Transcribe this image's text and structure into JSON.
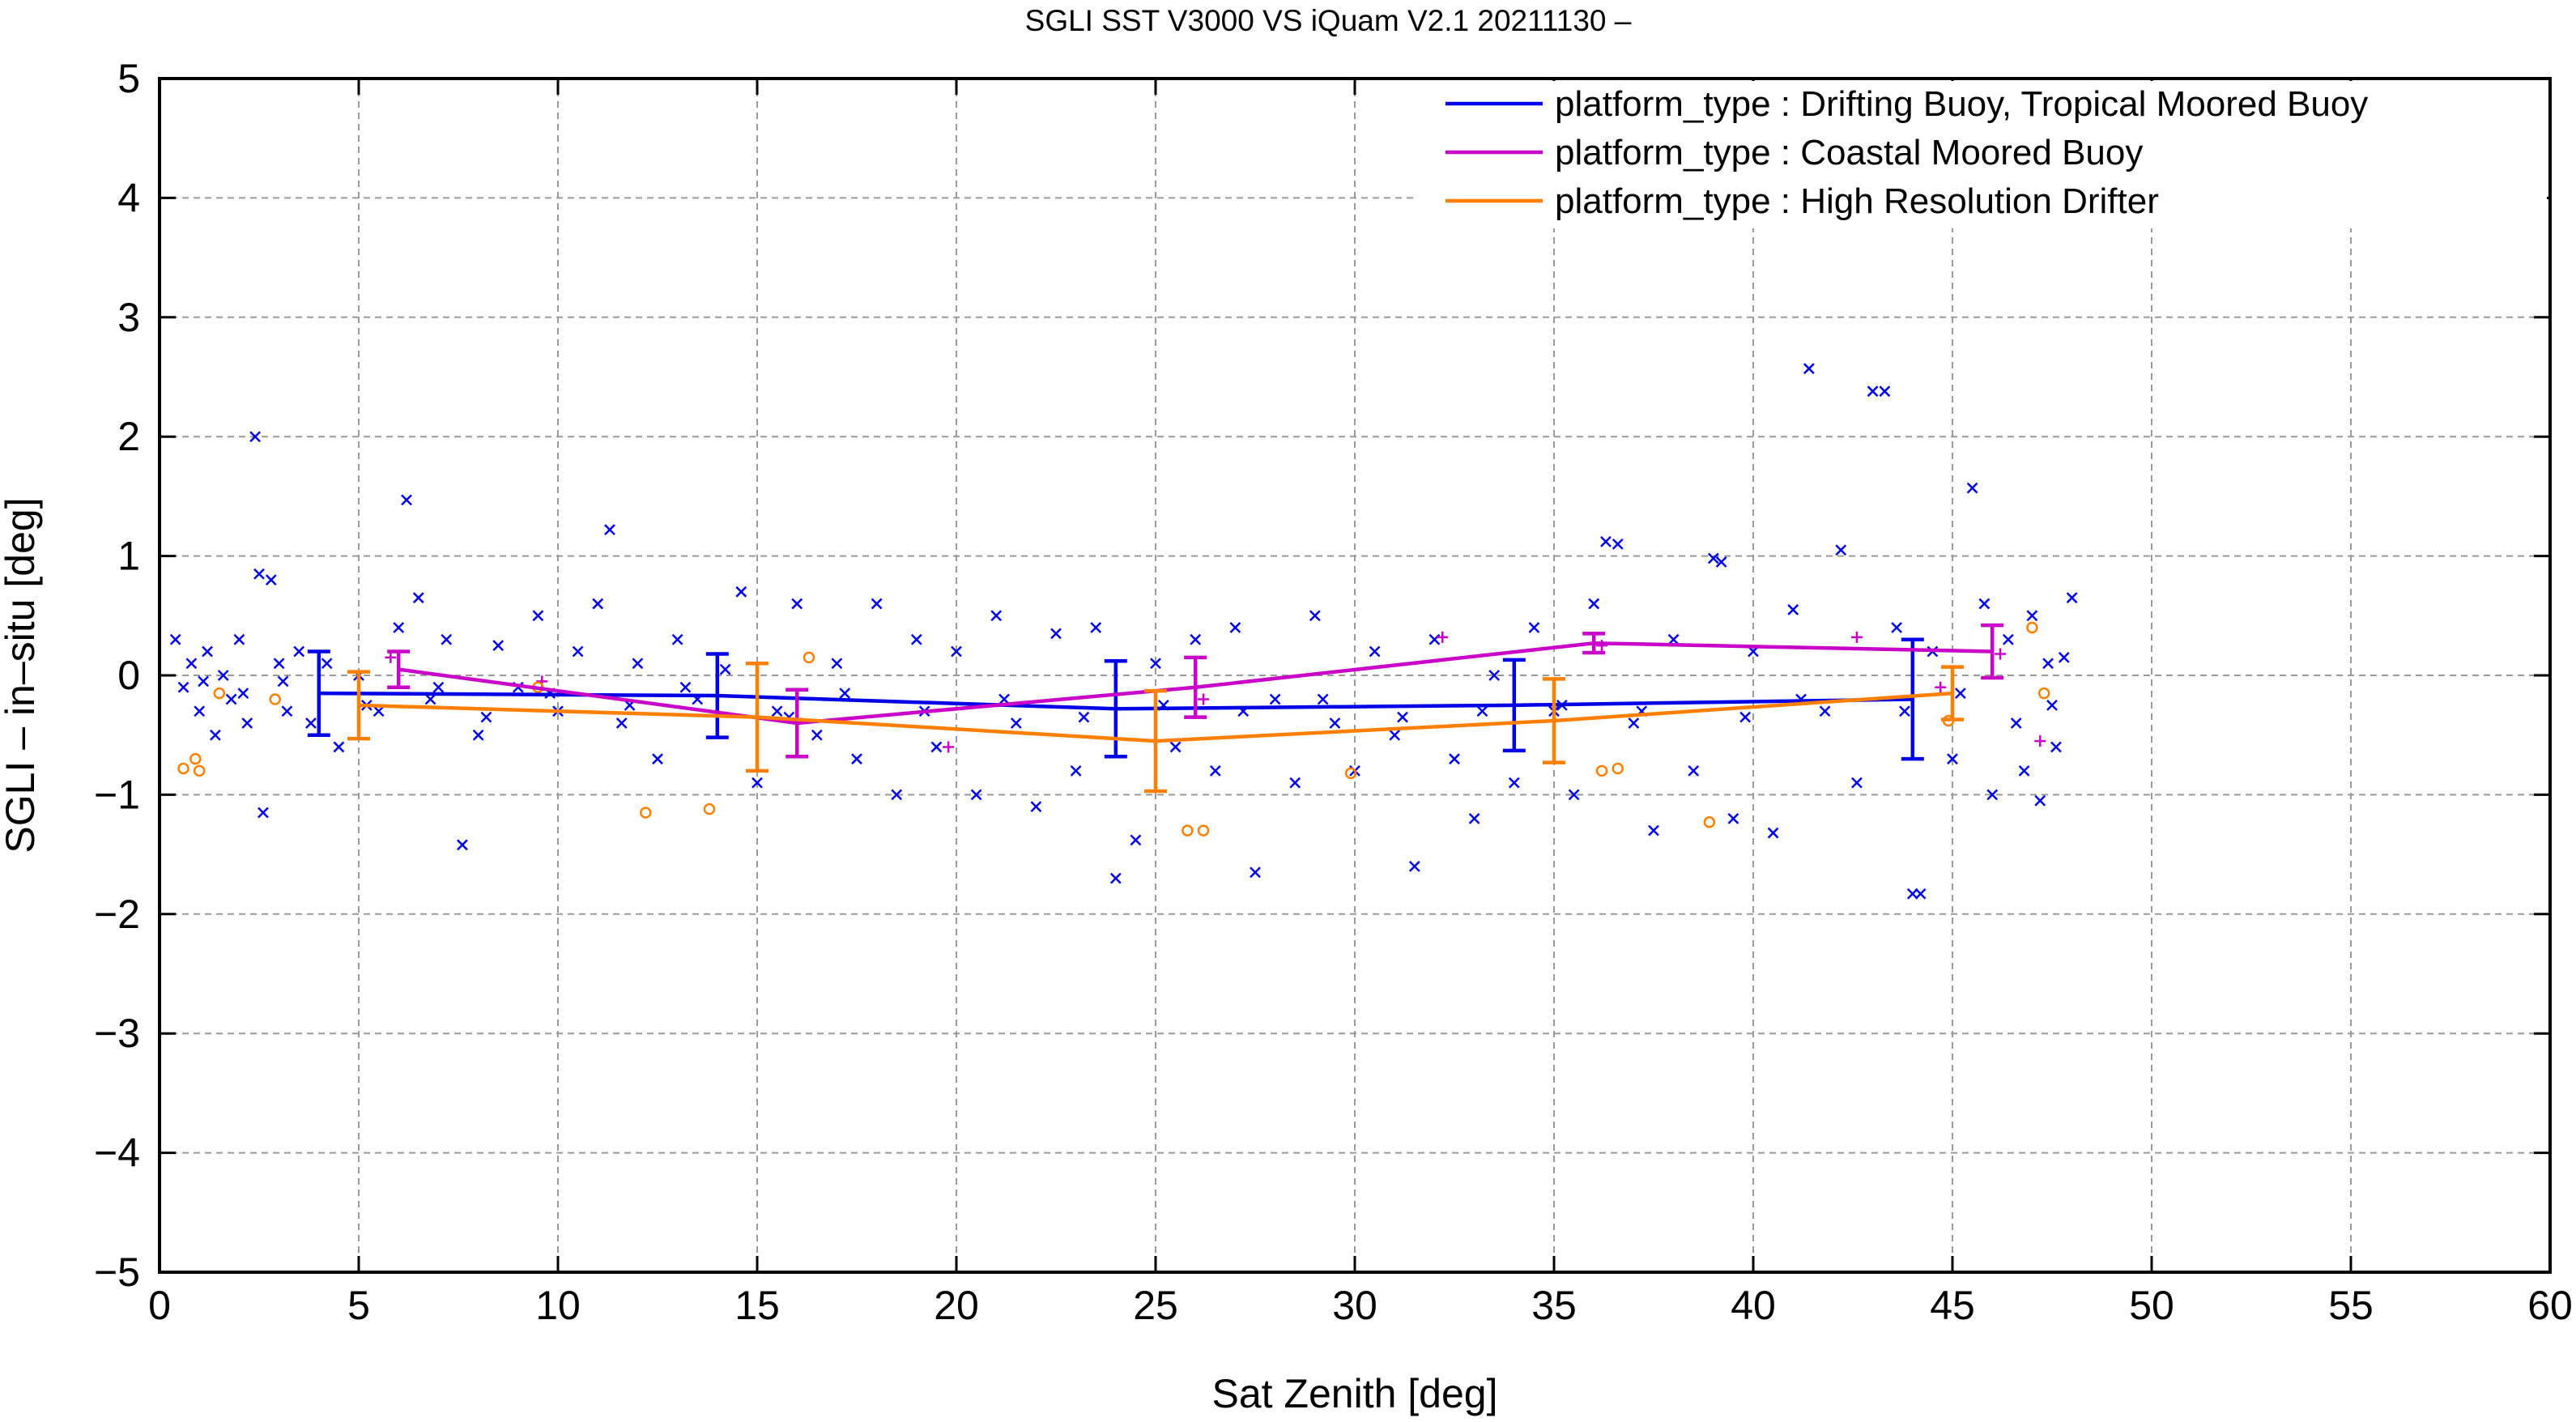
{
  "chart_data": {
    "type": "scatter",
    "title": "SGLI SST V3000 VS iQuam V2.1 20211130 –",
    "xlabel": "Sat Zenith [deg]",
    "ylabel": "SGLI – in–situ [deg]",
    "xlim": [
      0,
      60
    ],
    "ylim": [
      -5,
      5
    ],
    "xticks": [
      0,
      5,
      10,
      15,
      20,
      25,
      30,
      35,
      40,
      45,
      50,
      55,
      60
    ],
    "yticks": [
      -5,
      -4,
      -3,
      -2,
      -1,
      0,
      1,
      2,
      3,
      4,
      5
    ],
    "xtick_labels": [
      "0",
      "5",
      "10",
      "15",
      "20",
      "25",
      "30",
      "35",
      "40",
      "45",
      "50",
      "55",
      "60"
    ],
    "ytick_labels": [
      "−5",
      "−4",
      "−3",
      "−2",
      "−1",
      "0",
      "1",
      "2",
      "3",
      "4",
      "5"
    ],
    "grid": true,
    "legend_position": "top-right",
    "series": [
      {
        "name": "platform_type : Drifting Buoy, Tropical Moored Buoy",
        "color": "#0000e6",
        "marker": "x",
        "mean_line": {
          "x": [
            4,
            14,
            24,
            34,
            44
          ],
          "y": [
            -0.15,
            -0.17,
            -0.28,
            -0.25,
            -0.2
          ],
          "err": [
            0.35,
            0.35,
            0.4,
            0.38,
            0.5
          ]
        },
        "points": [
          [
            0.4,
            0.3
          ],
          [
            0.6,
            -0.1
          ],
          [
            0.8,
            0.1
          ],
          [
            1.0,
            -0.3
          ],
          [
            1.2,
            0.2
          ],
          [
            1.4,
            -0.5
          ],
          [
            1.6,
            0.0
          ],
          [
            1.8,
            -0.2
          ],
          [
            2.0,
            0.3
          ],
          [
            2.2,
            -0.4
          ],
          [
            2.4,
            2.0
          ],
          [
            2.5,
            0.85
          ],
          [
            2.6,
            -1.15
          ],
          [
            2.8,
            0.8
          ],
          [
            3.0,
            0.1
          ],
          [
            3.2,
            -0.3
          ],
          [
            3.5,
            0.2
          ],
          [
            3.8,
            -0.4
          ],
          [
            4.2,
            0.1
          ],
          [
            4.5,
            -0.6
          ],
          [
            5.0,
            0.0
          ],
          [
            5.5,
            -0.3
          ],
          [
            6.0,
            0.4
          ],
          [
            6.2,
            1.47
          ],
          [
            6.5,
            0.65
          ],
          [
            6.8,
            -0.2
          ],
          [
            7.2,
            0.3
          ],
          [
            7.6,
            -1.42
          ],
          [
            8.0,
            -0.5
          ],
          [
            8.5,
            0.25
          ],
          [
            9.0,
            -0.1
          ],
          [
            9.5,
            0.5
          ],
          [
            10.0,
            -0.3
          ],
          [
            10.5,
            0.2
          ],
          [
            11.0,
            0.6
          ],
          [
            11.3,
            1.22
          ],
          [
            11.6,
            -0.4
          ],
          [
            12.0,
            0.1
          ],
          [
            12.5,
            -0.7
          ],
          [
            13.0,
            0.3
          ],
          [
            13.5,
            -0.2
          ],
          [
            14.2,
            0.05
          ],
          [
            14.6,
            0.7
          ],
          [
            15.0,
            -0.9
          ],
          [
            15.5,
            -0.3
          ],
          [
            16.0,
            0.6
          ],
          [
            16.5,
            -0.5
          ],
          [
            17.0,
            0.1
          ],
          [
            17.5,
            -0.7
          ],
          [
            18.0,
            0.6
          ],
          [
            18.5,
            -1.0
          ],
          [
            19.0,
            0.3
          ],
          [
            19.5,
            -0.6
          ],
          [
            20.0,
            0.2
          ],
          [
            20.5,
            -1.0
          ],
          [
            21.0,
            0.5
          ],
          [
            21.5,
            -0.4
          ],
          [
            22.0,
            -1.1
          ],
          [
            22.5,
            0.35
          ],
          [
            23.0,
            -0.8
          ],
          [
            23.5,
            0.4
          ],
          [
            24.0,
            -1.7
          ],
          [
            24.5,
            -1.38
          ],
          [
            25.0,
            0.1
          ],
          [
            25.5,
            -0.6
          ],
          [
            26.0,
            0.3
          ],
          [
            26.5,
            -0.8
          ],
          [
            27.0,
            0.4
          ],
          [
            27.5,
            -1.65
          ],
          [
            28.0,
            -0.2
          ],
          [
            28.5,
            -0.9
          ],
          [
            29.0,
            0.5
          ],
          [
            29.5,
            -0.4
          ],
          [
            30.0,
            -0.8
          ],
          [
            30.5,
            0.2
          ],
          [
            31.0,
            -0.5
          ],
          [
            31.5,
            -1.6
          ],
          [
            32.0,
            0.3
          ],
          [
            32.5,
            -0.7
          ],
          [
            33.0,
            -1.2
          ],
          [
            33.5,
            0.0
          ],
          [
            34.0,
            -0.9
          ],
          [
            34.5,
            0.4
          ],
          [
            35.0,
            -0.3
          ],
          [
            35.5,
            -1.0
          ],
          [
            36.0,
            0.6
          ],
          [
            36.3,
            1.12
          ],
          [
            36.6,
            1.1
          ],
          [
            37.0,
            -0.4
          ],
          [
            37.5,
            -1.3
          ],
          [
            38.0,
            0.3
          ],
          [
            38.5,
            -0.8
          ],
          [
            39.0,
            0.98
          ],
          [
            39.2,
            0.95
          ],
          [
            39.5,
            -1.2
          ],
          [
            40.0,
            0.2
          ],
          [
            40.5,
            -1.32
          ],
          [
            41.0,
            0.55
          ],
          [
            41.4,
            2.57
          ],
          [
            41.8,
            -0.3
          ],
          [
            42.2,
            1.05
          ],
          [
            42.6,
            -0.9
          ],
          [
            43.0,
            2.38
          ],
          [
            43.3,
            2.38
          ],
          [
            43.6,
            0.4
          ],
          [
            44.0,
            -1.83
          ],
          [
            44.2,
            -1.83
          ],
          [
            44.5,
            0.2
          ],
          [
            45.0,
            -0.7
          ],
          [
            45.5,
            1.57
          ],
          [
            45.8,
            0.6
          ],
          [
            46.0,
            -1.0
          ],
          [
            46.4,
            0.3
          ],
          [
            46.8,
            -0.8
          ],
          [
            47.0,
            0.5
          ],
          [
            47.2,
            -1.05
          ],
          [
            47.4,
            0.1
          ],
          [
            47.6,
            -0.6
          ],
          [
            47.8,
            0.15
          ],
          [
            48.0,
            0.65
          ],
          [
            1.1,
            -0.05
          ],
          [
            2.1,
            -0.15
          ],
          [
            3.1,
            -0.05
          ],
          [
            5.2,
            -0.25
          ],
          [
            7.0,
            -0.1
          ],
          [
            8.2,
            -0.35
          ],
          [
            9.8,
            -0.15
          ],
          [
            11.8,
            -0.25
          ],
          [
            13.2,
            -0.1
          ],
          [
            15.8,
            -0.35
          ],
          [
            17.2,
            -0.15
          ],
          [
            19.2,
            -0.3
          ],
          [
            21.2,
            -0.2
          ],
          [
            23.2,
            -0.35
          ],
          [
            25.2,
            -0.25
          ],
          [
            27.2,
            -0.3
          ],
          [
            29.2,
            -0.2
          ],
          [
            31.2,
            -0.35
          ],
          [
            33.2,
            -0.3
          ],
          [
            35.2,
            -0.25
          ],
          [
            37.2,
            -0.3
          ],
          [
            39.8,
            -0.35
          ],
          [
            41.2,
            -0.2
          ],
          [
            43.8,
            -0.3
          ],
          [
            45.2,
            -0.15
          ],
          [
            46.6,
            -0.4
          ],
          [
            47.5,
            -0.25
          ]
        ]
      },
      {
        "name": "platform_type : Coastal Moored Buoy",
        "color": "#c800c8",
        "marker": "+",
        "mean_line": {
          "x": [
            6,
            16,
            26,
            36,
            46
          ],
          "y": [
            0.05,
            -0.4,
            -0.1,
            0.27,
            0.2
          ],
          "err": [
            0.15,
            0.28,
            0.25,
            0.08,
            0.22
          ]
        },
        "points": [
          [
            5.8,
            0.15
          ],
          [
            9.6,
            -0.05
          ],
          [
            19.8,
            -0.6
          ],
          [
            26.2,
            -0.2
          ],
          [
            32.2,
            0.32
          ],
          [
            36.2,
            0.25
          ],
          [
            42.6,
            0.32
          ],
          [
            44.7,
            -0.1
          ],
          [
            46.2,
            0.18
          ],
          [
            47.2,
            -0.55
          ]
        ]
      },
      {
        "name": "platform_type : High Resolution Drifter",
        "color": "#ff8000",
        "marker": "o",
        "mean_line": {
          "x": [
            5,
            15,
            25,
            35,
            45
          ],
          "y": [
            -0.25,
            -0.35,
            -0.55,
            -0.38,
            -0.15
          ],
          "err": [
            0.28,
            0.45,
            0.42,
            0.35,
            0.22
          ]
        },
        "points": [
          [
            0.6,
            -0.78
          ],
          [
            0.9,
            -0.7
          ],
          [
            1.0,
            -0.8
          ],
          [
            1.5,
            -0.15
          ],
          [
            2.9,
            -0.2
          ],
          [
            9.5,
            -0.1
          ],
          [
            12.2,
            -1.15
          ],
          [
            13.8,
            -1.12
          ],
          [
            16.3,
            0.15
          ],
          [
            25.8,
            -1.3
          ],
          [
            26.2,
            -1.3
          ],
          [
            29.9,
            -0.82
          ],
          [
            36.2,
            -0.8
          ],
          [
            36.6,
            -0.78
          ],
          [
            38.9,
            -1.23
          ],
          [
            44.9,
            -0.38
          ],
          [
            47.0,
            0.4
          ],
          [
            47.3,
            -0.15
          ]
        ]
      }
    ]
  }
}
